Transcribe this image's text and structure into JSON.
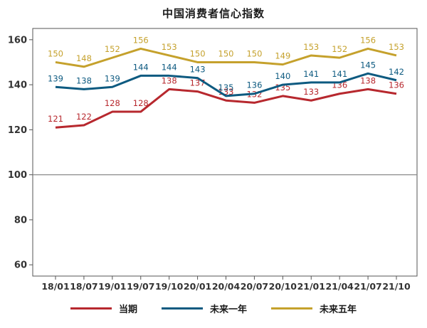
{
  "chart_data": {
    "type": "line",
    "title": "中国消费者信心指数",
    "xlabel": "",
    "ylabel": "",
    "ylim": [
      55,
      165
    ],
    "yticks": [
      60,
      80,
      100,
      120,
      140,
      160
    ],
    "reference_line": 100,
    "categories": [
      "18/01",
      "18/07",
      "19/01",
      "19/07",
      "19/10",
      "20/01",
      "20/04",
      "20/07",
      "20/10",
      "21/01",
      "21/04",
      "21/07",
      "21/10"
    ],
    "series": [
      {
        "name": "当期",
        "color": "#b7282e",
        "values": [
          121,
          122,
          128,
          128,
          138,
          137,
          133,
          132,
          135,
          133,
          136,
          138,
          136
        ]
      },
      {
        "name": "未来一年",
        "color": "#0d5a80",
        "values": [
          139,
          138,
          139,
          144,
          144,
          143,
          135,
          136,
          140,
          141,
          141,
          145,
          142
        ]
      },
      {
        "name": "未来五年",
        "color": "#c5a12c",
        "values": [
          150,
          148,
          152,
          156,
          153,
          150,
          150,
          150,
          149,
          153,
          152,
          156,
          153
        ]
      }
    ],
    "legend_position": "bottom"
  }
}
